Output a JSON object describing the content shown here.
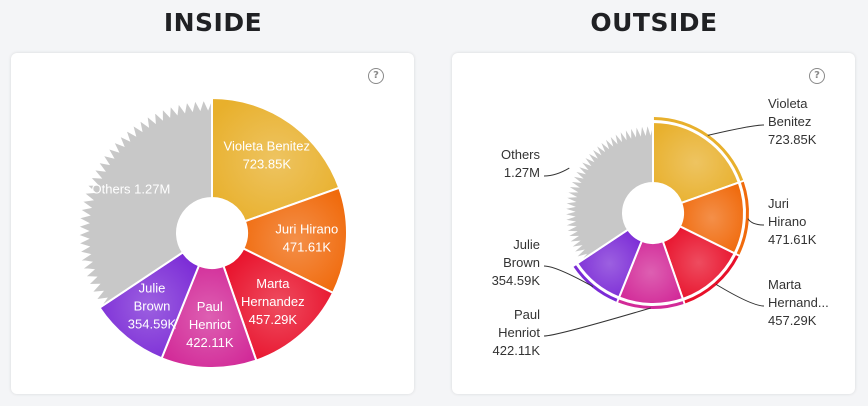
{
  "headings": {
    "inside": "INSIDE",
    "outside": "OUTSIDE"
  },
  "help_glyph": "?",
  "chart_data": [
    {
      "type": "pie",
      "title": "INSIDE",
      "label_position": "inside",
      "categories": [
        "Violeta Benitez",
        "Juri Hirano",
        "Marta Hernandez",
        "Paul Henriot",
        "Julie Brown",
        "Others"
      ],
      "values": [
        723.85,
        471.61,
        457.29,
        422.11,
        354.59,
        1270
      ],
      "value_labels": [
        "723.85K",
        "471.61K",
        "457.29K",
        "422.11K",
        "354.59K",
        "1.27M"
      ],
      "colors": [
        "#e8b02c",
        "#f06a0c",
        "#e8102a",
        "#d22a98",
        "#7b2bd6",
        "#c8c8c8"
      ],
      "donut_hole": true
    },
    {
      "type": "pie",
      "title": "OUTSIDE",
      "label_position": "outside",
      "categories": [
        "Violeta Benitez",
        "Juri Hirano",
        "Marta Hernand...",
        "Paul Henriot",
        "Julie Brown",
        "Others"
      ],
      "values": [
        723.85,
        471.61,
        457.29,
        422.11,
        354.59,
        1270
      ],
      "value_labels": [
        "723.85K",
        "471.61K",
        "457.29K",
        "422.11K",
        "354.59K",
        "1.27M"
      ],
      "colors": [
        "#e8b02c",
        "#f06a0c",
        "#e8102a",
        "#d22a98",
        "#7b2bd6",
        "#c8c8c8"
      ],
      "donut_hole": true
    }
  ]
}
